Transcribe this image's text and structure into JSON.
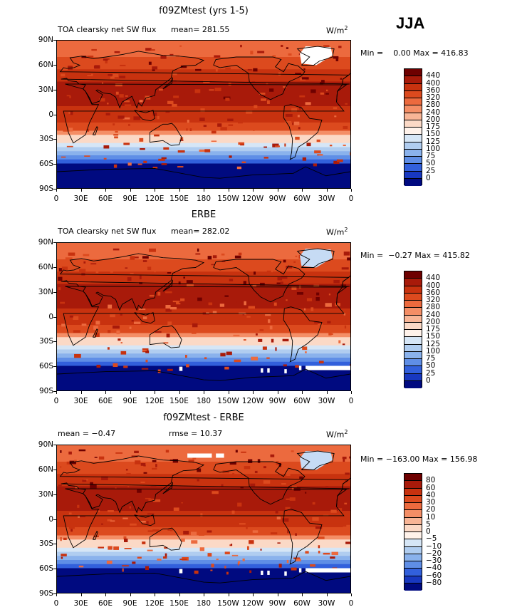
{
  "season": "JJA",
  "panels": [
    {
      "title": "f09ZMtest (yrs 1-5)",
      "left_label": "TOA clearsky net SW flux",
      "mean_text": "mean= 281.55",
      "units_base": "W/m",
      "units_exp": "2",
      "minmax_text": "Min =    0.00 Max = 416.83",
      "colorbar_labels": [
        "440",
        "400",
        "360",
        "320",
        "280",
        "240",
        "200",
        "175",
        "150",
        "125",
        "100",
        "75",
        "50",
        "25",
        "0"
      ]
    },
    {
      "title": "ERBE",
      "left_label": "TOA clearsky net SW flux",
      "mean_text": "mean= 282.02",
      "units_base": "W/m",
      "units_exp": "2",
      "minmax_text": "Min =  −0.27 Max = 415.82",
      "colorbar_labels": [
        "440",
        "400",
        "360",
        "320",
        "280",
        "240",
        "200",
        "175",
        "150",
        "125",
        "100",
        "75",
        "50",
        "25",
        "0"
      ]
    },
    {
      "title": "f09ZMtest - ERBE",
      "left_label": "mean =   −0.47",
      "mean_text": "rmse =   10.37",
      "units_base": "W/m",
      "units_exp": "2",
      "minmax_text": "Min = −163.00 Max = 156.98",
      "colorbar_labels": [
        "80",
        "60",
        "40",
        "30",
        "20",
        "10",
        "5",
        "0",
        "−5",
        "−10",
        "−20",
        "−30",
        "−40",
        "−60",
        "−80"
      ]
    }
  ],
  "axes": {
    "lat_ticks": [
      "90N",
      "60N",
      "30N",
      "0",
      "30S",
      "60S",
      "90S"
    ],
    "lon_ticks": [
      "0",
      "30E",
      "60E",
      "90E",
      "120E",
      "150E",
      "180",
      "150W",
      "120W",
      "90W",
      "60W",
      "30W",
      "0"
    ]
  },
  "colors": {
    "abs_scale": [
      "#6e0000",
      "#a81a0a",
      "#c8320f",
      "#dc4a1e",
      "#ec6a3e",
      "#f48e66",
      "#f8b596",
      "#fbd9c6",
      "#fff2ea",
      "#d6e6f6",
      "#b0cdf0",
      "#8ab2ec",
      "#5f8ee6",
      "#3260dc",
      "#1838c0",
      "#000a80"
    ],
    "diff_scale": [
      "#7a0000",
      "#b01e12",
      "#cc3a1c",
      "#e0582e",
      "#ee8a62",
      "#f6b294",
      "#fbd4c0",
      "#fff0e4",
      "#e8f2fc",
      "#c6dbf4",
      "#a4c0ee",
      "#7a9ee6",
      "#4d72da",
      "#2446c4",
      "#0c1e98",
      "#00007a"
    ]
  }
}
